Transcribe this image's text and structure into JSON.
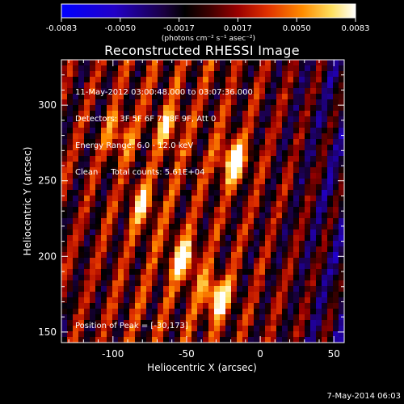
{
  "colorbar": {
    "tick_labels": [
      "-0.0083",
      "-0.0050",
      "-0.0017",
      "0.0017",
      "0.0050",
      "0.0083"
    ],
    "unit_label": "(photons cm⁻² s⁻¹ asec⁻²)",
    "range": [
      -0.0083,
      0.0083
    ]
  },
  "title": "Reconstructed RHESSI Image",
  "info": {
    "line1": "11-May-2012 03:00:48.000 to 03:07:36.000",
    "line2": "Detectors: 3F 5F 6F 7F 8F 9F, Att 0",
    "line3": "Energy Range: 6.0 - 12.0 keV",
    "line4": "Clean     Total counts: 5.61E+04"
  },
  "peak_label": "Position of Peak = [-30,173]",
  "axes": {
    "xlabel": "Heliocentric X (arcsec)",
    "ylabel": "Heliocentric Y (arcsec)",
    "xlim": [
      -135,
      57
    ],
    "ylim": [
      143,
      330
    ],
    "xticks": [
      -100,
      -50,
      0,
      50
    ],
    "yticks": [
      150,
      200,
      250,
      300
    ]
  },
  "sources": [
    {
      "x": -18,
      "y": 263,
      "strength": 1.0
    },
    {
      "x": -30,
      "y": 173,
      "strength": 0.95
    },
    {
      "x": -52,
      "y": 198,
      "strength": 0.85
    },
    {
      "x": -80,
      "y": 235,
      "strength": 0.6
    },
    {
      "x": -95,
      "y": 280,
      "strength": 0.55
    },
    {
      "x": -62,
      "y": 285,
      "strength": 0.5
    }
  ],
  "footer_date": "7-May-2014 06:03"
}
